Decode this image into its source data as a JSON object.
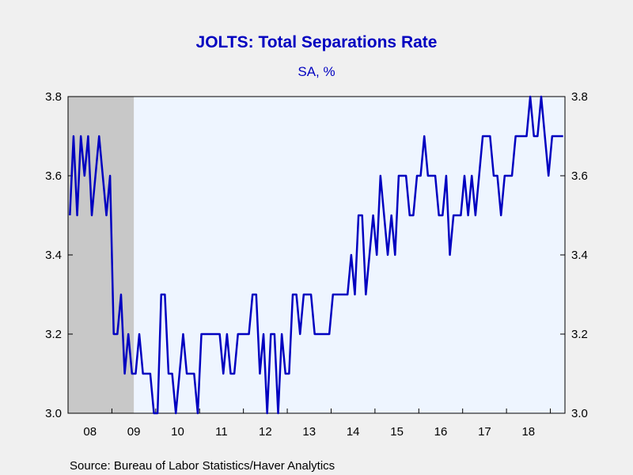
{
  "chart_data": {
    "type": "line",
    "title": "JOLTS: Total Separations Rate",
    "subtitle": "SA, %",
    "source": "Source:  Bureau of Labor Statistics/Haver Analytics",
    "x_start": "2008-01",
    "x_tick_labels": [
      "08",
      "09",
      "10",
      "11",
      "12",
      "13",
      "14",
      "15",
      "16",
      "17",
      "18"
    ],
    "y_ticks": [
      "3.0",
      "3.2",
      "3.4",
      "3.6",
      "3.8"
    ],
    "ylim": [
      3.0,
      3.8
    ],
    "recession": {
      "from": "2008-01",
      "to": "2009-06"
    },
    "series": [
      {
        "color": "#0000c0",
        "values": [
          3.5,
          3.7,
          3.5,
          3.7,
          3.6,
          3.7,
          3.5,
          3.6,
          3.7,
          3.6,
          3.5,
          3.6,
          3.2,
          3.2,
          3.3,
          3.1,
          3.2,
          3.1,
          3.1,
          3.2,
          3.1,
          3.1,
          3.1,
          3.0,
          3.0,
          3.3,
          3.3,
          3.1,
          3.1,
          3.0,
          3.1,
          3.2,
          3.1,
          3.1,
          3.1,
          3.0,
          3.2,
          3.2,
          3.2,
          3.2,
          3.2,
          3.2,
          3.1,
          3.2,
          3.1,
          3.1,
          3.2,
          3.2,
          3.2,
          3.2,
          3.3,
          3.3,
          3.1,
          3.2,
          3.0,
          3.2,
          3.2,
          3.0,
          3.2,
          3.1,
          3.1,
          3.3,
          3.3,
          3.2,
          3.3,
          3.3,
          3.3,
          3.2,
          3.2,
          3.2,
          3.2,
          3.2,
          3.3,
          3.3,
          3.3,
          3.3,
          3.3,
          3.4,
          3.3,
          3.5,
          3.5,
          3.3,
          3.4,
          3.5,
          3.4,
          3.6,
          3.5,
          3.4,
          3.5,
          3.4,
          3.6,
          3.6,
          3.6,
          3.5,
          3.5,
          3.6,
          3.6,
          3.7,
          3.6,
          3.6,
          3.6,
          3.5,
          3.5,
          3.6,
          3.4,
          3.5,
          3.5,
          3.5,
          3.6,
          3.5,
          3.6,
          3.5,
          3.6,
          3.7,
          3.7,
          3.7,
          3.6,
          3.6,
          3.5,
          3.6,
          3.6,
          3.6,
          3.7,
          3.7,
          3.7,
          3.7,
          3.8,
          3.7,
          3.7,
          3.8,
          3.7,
          3.6,
          3.7,
          3.7,
          3.7,
          3.7
        ]
      }
    ]
  }
}
